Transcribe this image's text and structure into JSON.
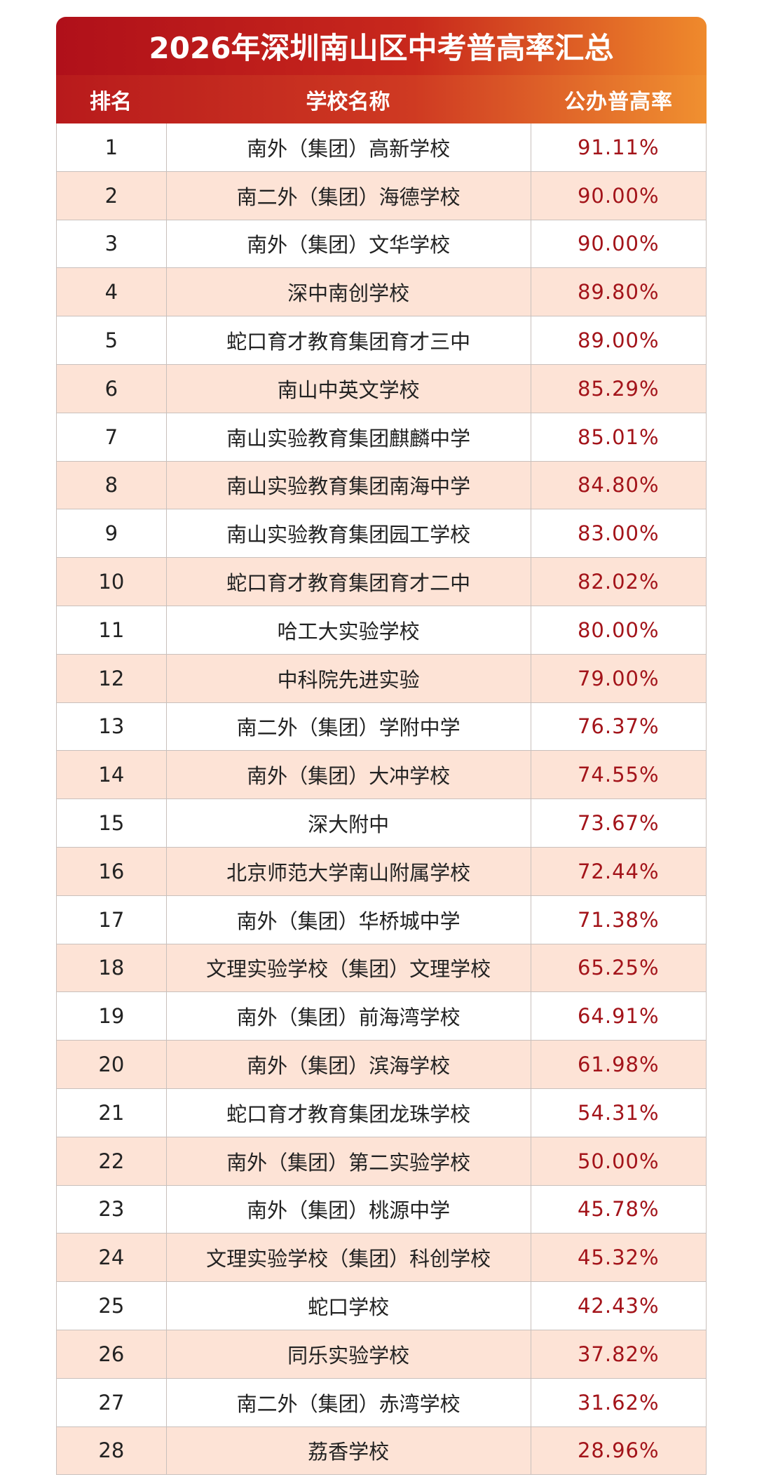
{
  "header": {
    "title": "2026年深圳南山区中考普高率汇总"
  },
  "table": {
    "columns": [
      "排名",
      "学校名称",
      "公办普高率"
    ],
    "rows": [
      [
        1,
        "南外（集团）高新学校",
        "91.11%"
      ],
      [
        2,
        "南二外（集团）海德学校",
        "90.00%"
      ],
      [
        3,
        "南外（集团）文华学校",
        "90.00%"
      ],
      [
        4,
        "深中南创学校",
        "89.80%"
      ],
      [
        5,
        "蛇口育才教育集团育才三中",
        "89.00%"
      ],
      [
        6,
        "南山中英文学校",
        "85.29%"
      ],
      [
        7,
        "南山实验教育集团麒麟中学",
        "85.01%"
      ],
      [
        8,
        "南山实验教育集团南海中学",
        "84.80%"
      ],
      [
        9,
        "南山实验教育集团园工学校",
        "83.00%"
      ],
      [
        10,
        "蛇口育才教育集团育才二中",
        "82.02%"
      ],
      [
        11,
        "哈工大实验学校",
        "80.00%"
      ],
      [
        12,
        "中科院先进实验",
        "79.00%"
      ],
      [
        13,
        "南二外（集团）学附中学",
        "76.37%"
      ],
      [
        14,
        "南外（集团）大冲学校",
        "74.55%"
      ],
      [
        15,
        "深大附中",
        "73.67%"
      ],
      [
        16,
        "北京师范大学南山附属学校",
        "72.44%"
      ],
      [
        17,
        "南外（集团）华桥城中学",
        "71.38%"
      ],
      [
        18,
        "文理实验学校（集团）文理学校",
        "65.25%"
      ],
      [
        19,
        "南外（集团）前海湾学校",
        "64.91%"
      ],
      [
        20,
        "南外（集团）滨海学校",
        "61.98%"
      ],
      [
        21,
        "蛇口育才教育集团龙珠学校",
        "54.31%"
      ],
      [
        22,
        "南外（集团）第二实验学校",
        "50.00%"
      ],
      [
        23,
        "南外（集团）桃源中学",
        "45.78%"
      ],
      [
        24,
        "文理实验学校（集团）科创学校",
        "45.32%"
      ],
      [
        25,
        "蛇口学校",
        "42.43%"
      ],
      [
        26,
        "同乐实验学校",
        "37.82%"
      ],
      [
        27,
        "南二外（集团）赤湾学校",
        "31.62%"
      ],
      [
        28,
        "荔香学校",
        "28.96%"
      ]
    ]
  }
}
